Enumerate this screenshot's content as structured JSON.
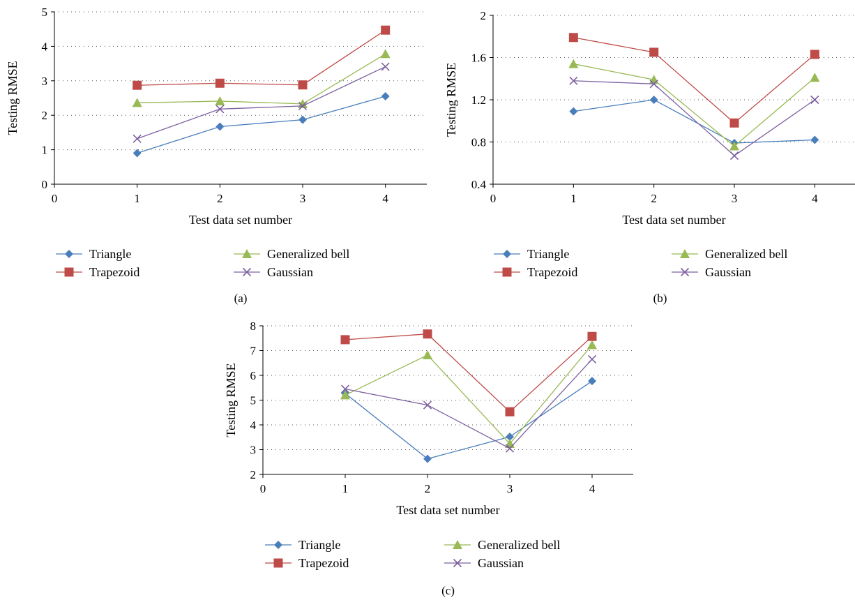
{
  "colors": {
    "Triangle": "#4a7ebb",
    "Trapezoid": "#be4b48",
    "Generalized bell": "#98b954",
    "Gaussian": "#7d60a0"
  },
  "markers": {
    "Triangle": "diamond",
    "Trapezoid": "square",
    "Generalized bell": "triangle",
    "Gaussian": "cross"
  },
  "chart_data": [
    {
      "type": "line",
      "panel_label": "(a)",
      "xlabel": "Test data set number",
      "ylabel": "Testing RMSE",
      "xlim": [
        0,
        4.5
      ],
      "ylim": [
        0,
        5
      ],
      "xticks": [
        "0",
        "1",
        "2",
        "3",
        "4"
      ],
      "yticks": [
        "0",
        "1",
        "2",
        "3",
        "4",
        "5"
      ],
      "ytick_values": [
        0,
        1,
        2,
        3,
        4,
        5
      ],
      "grid": "horizontal-dotted",
      "legend_position": "bottom",
      "x": [
        1,
        2,
        3,
        4
      ],
      "series": [
        {
          "name": "Triangle",
          "values": [
            0.9,
            1.67,
            1.87,
            2.55
          ]
        },
        {
          "name": "Trapezoid",
          "values": [
            2.87,
            2.93,
            2.88,
            4.47
          ]
        },
        {
          "name": "Generalized bell",
          "values": [
            2.36,
            2.41,
            2.33,
            3.78
          ]
        },
        {
          "name": "Gaussian",
          "values": [
            1.32,
            2.18,
            2.27,
            3.41
          ]
        }
      ]
    },
    {
      "type": "line",
      "panel_label": "(b)",
      "xlabel": "Test data set number",
      "ylabel": "Testing RMSE",
      "xlim": [
        0,
        4.5
      ],
      "ylim": [
        0.4,
        2
      ],
      "xticks": [
        "0",
        "1",
        "2",
        "3",
        "4"
      ],
      "yticks": [
        "0.4",
        "0.8",
        "1.2",
        "1.6",
        "2"
      ],
      "ytick_values": [
        0.4,
        0.8,
        1.2,
        1.6,
        2
      ],
      "grid": "horizontal-dotted",
      "legend_position": "bottom",
      "x": [
        1,
        2,
        3,
        4
      ],
      "series": [
        {
          "name": "Triangle",
          "values": [
            1.09,
            1.2,
            0.79,
            0.82
          ]
        },
        {
          "name": "Trapezoid",
          "values": [
            1.79,
            1.65,
            0.98,
            1.63
          ]
        },
        {
          "name": "Generalized bell",
          "values": [
            1.54,
            1.39,
            0.76,
            1.41
          ]
        },
        {
          "name": "Gaussian",
          "values": [
            1.38,
            1.35,
            0.67,
            1.2
          ]
        }
      ]
    },
    {
      "type": "line",
      "panel_label": "(c)",
      "xlabel": "Test data set number",
      "ylabel": "Testing RMSE",
      "xlim": [
        0,
        4.5
      ],
      "ylim": [
        2,
        8
      ],
      "xticks": [
        "0",
        "1",
        "2",
        "3",
        "4"
      ],
      "yticks": [
        "2",
        "3",
        "4",
        "5",
        "6",
        "7",
        "8"
      ],
      "ytick_values": [
        2,
        3,
        4,
        5,
        6,
        7,
        8
      ],
      "grid": "horizontal-dotted",
      "legend_position": "bottom",
      "x": [
        1,
        2,
        3,
        4
      ],
      "series": [
        {
          "name": "Triangle",
          "values": [
            5.27,
            2.63,
            3.52,
            5.77
          ]
        },
        {
          "name": "Trapezoid",
          "values": [
            7.44,
            7.67,
            4.53,
            7.57
          ]
        },
        {
          "name": "Generalized bell",
          "values": [
            5.2,
            6.82,
            3.24,
            7.23
          ]
        },
        {
          "name": "Gaussian",
          "values": [
            5.45,
            4.8,
            3.05,
            6.65
          ]
        }
      ]
    }
  ]
}
